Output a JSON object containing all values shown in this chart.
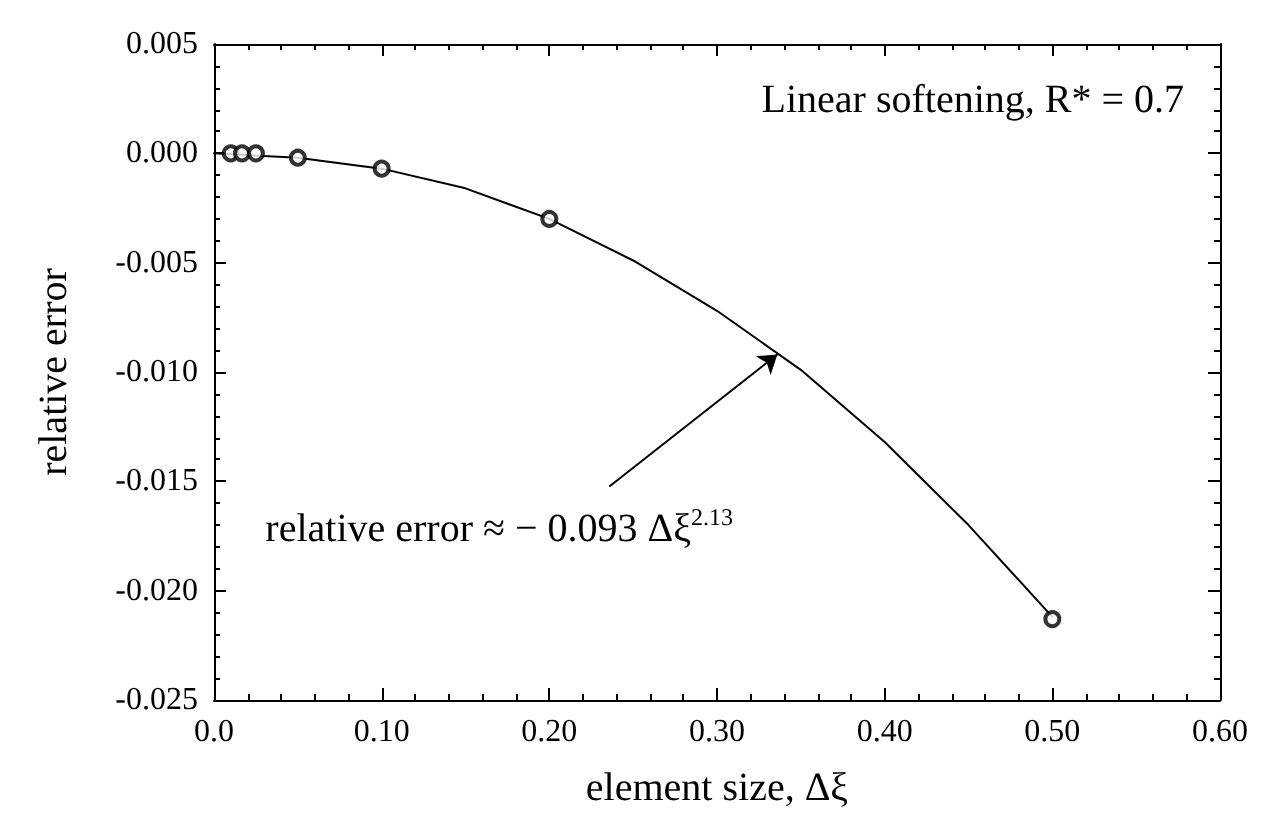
{
  "chart_data": {
    "type": "line",
    "xlabel": "element size, Δξ",
    "ylabel": "relative error",
    "annotations": [
      "Linear softening, R* = 0.7",
      {
        "text": "relative error ≈ − 0.093 Δξ$^{2.13}$",
        "x": 0.336,
        "y": -0.0092
      }
    ],
    "series": [
      {
        "color": "#000000",
        "marker": "none",
        "x": [
          0.0,
          0.05,
          0.1,
          0.15,
          0.2,
          0.25,
          0.3,
          0.35,
          0.4,
          0.45,
          0.5
        ],
        "values": [
          0.0,
          -0.0002,
          -0.0007,
          -0.0016,
          -0.003,
          -0.0049,
          -0.0072,
          -0.0099,
          -0.0132,
          -0.017,
          -0.0212
        ]
      },
      {
        "type": "scatter",
        "color": "#000000",
        "marker": "circle",
        "x": [
          0.01,
          0.0167,
          0.025,
          0.05,
          0.1,
          0.2,
          0.5
        ],
        "values": [
          0.0,
          0.0,
          0.0,
          -0.0002,
          -0.0007,
          -0.003,
          -0.0213
        ]
      }
    ],
    "xlim": [
      0,
      0.6
    ],
    "xticks": [
      {
        "value": 0,
        "label": "0.0"
      },
      {
        "value": 0.1,
        "label": "0.10"
      },
      {
        "value": 0.2,
        "label": "0.20"
      },
      {
        "value": 0.3,
        "label": "0.30"
      },
      {
        "value": 0.4,
        "label": "0.40"
      },
      {
        "value": 0.5,
        "label": "0.50"
      },
      {
        "value": 0.6,
        "label": "0.60"
      }
    ],
    "ylim": [
      -0.025,
      0.005
    ],
    "yticks": [
      {
        "value": -0.025,
        "label": "-0.025"
      },
      {
        "value": -0.02,
        "label": "-0.020"
      },
      {
        "value": -0.015,
        "label": "-0.015"
      },
      {
        "value": -0.01,
        "label": "-0.010"
      },
      {
        "value": -0.005,
        "label": "-0.005"
      },
      {
        "value": 0,
        "label": "0.000"
      },
      {
        "value": 0.005,
        "label": "0.005"
      }
    ],
    "grid": false
  }
}
